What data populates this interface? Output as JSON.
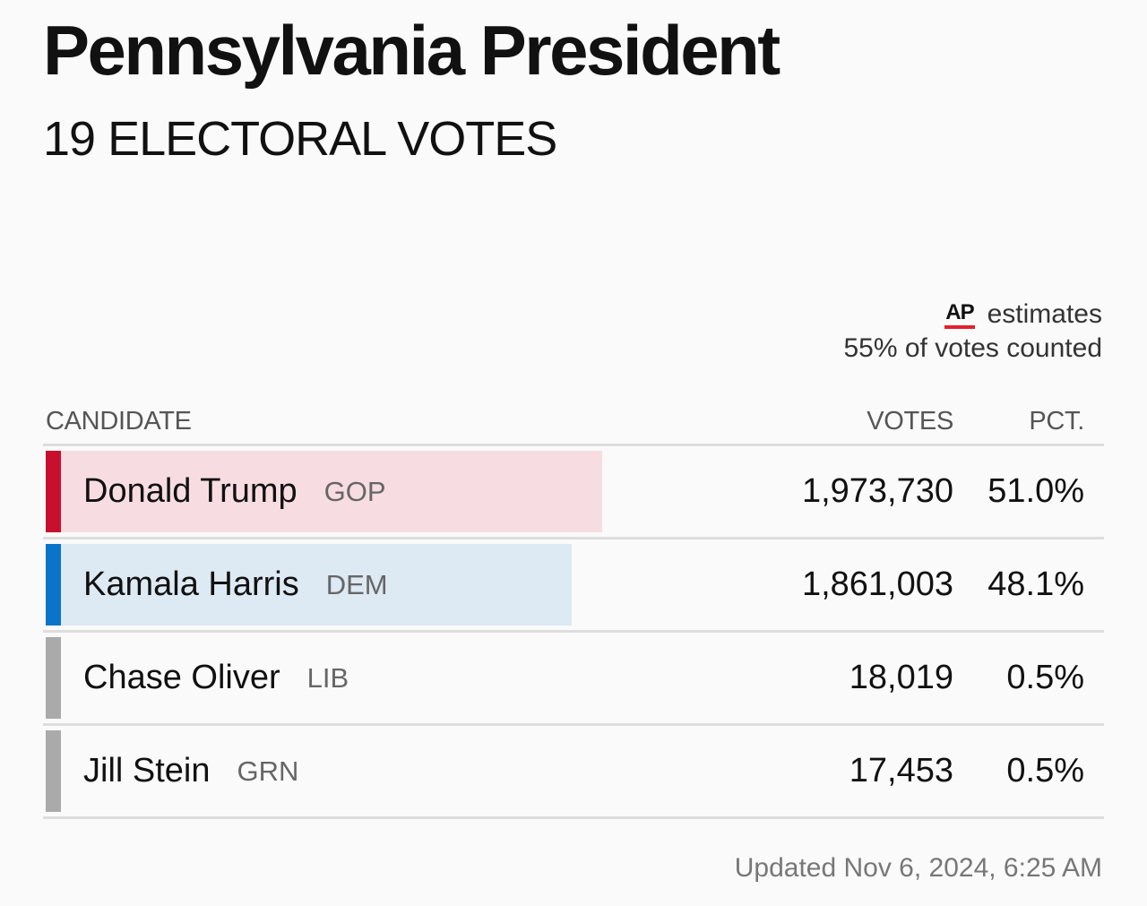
{
  "header": {
    "title": "Pennsylvania President",
    "subtitle": "19 ELECTORAL VOTES"
  },
  "estimates": {
    "logo_text": "AP",
    "label": "estimates",
    "counted": "55% of votes counted"
  },
  "table": {
    "columns": {
      "candidate": "CANDIDATE",
      "votes": "VOTES",
      "pct": "PCT."
    },
    "rows": [
      {
        "name": "Donald Trump",
        "party": "GOP",
        "votes": "1,973,730",
        "pct": "51.0%",
        "share": 51.0,
        "accent": "#c8102e",
        "fill": "#f7dde2"
      },
      {
        "name": "Kamala Harris",
        "party": "DEM",
        "votes": "1,861,003",
        "pct": "48.1%",
        "share": 48.1,
        "accent": "#0a74c9",
        "fill": "#dde9f3"
      },
      {
        "name": "Chase Oliver",
        "party": "LIB",
        "votes": "18,019",
        "pct": "0.5%",
        "share": 0.5,
        "accent": "#aaaaaa",
        "fill": "none"
      },
      {
        "name": "Jill Stein",
        "party": "GRN",
        "votes": "17,453",
        "pct": "0.5%",
        "share": 0.5,
        "accent": "#aaaaaa",
        "fill": "none"
      }
    ]
  },
  "footer": {
    "updated": "Updated  Nov 6, 2024, 6:25 AM"
  }
}
